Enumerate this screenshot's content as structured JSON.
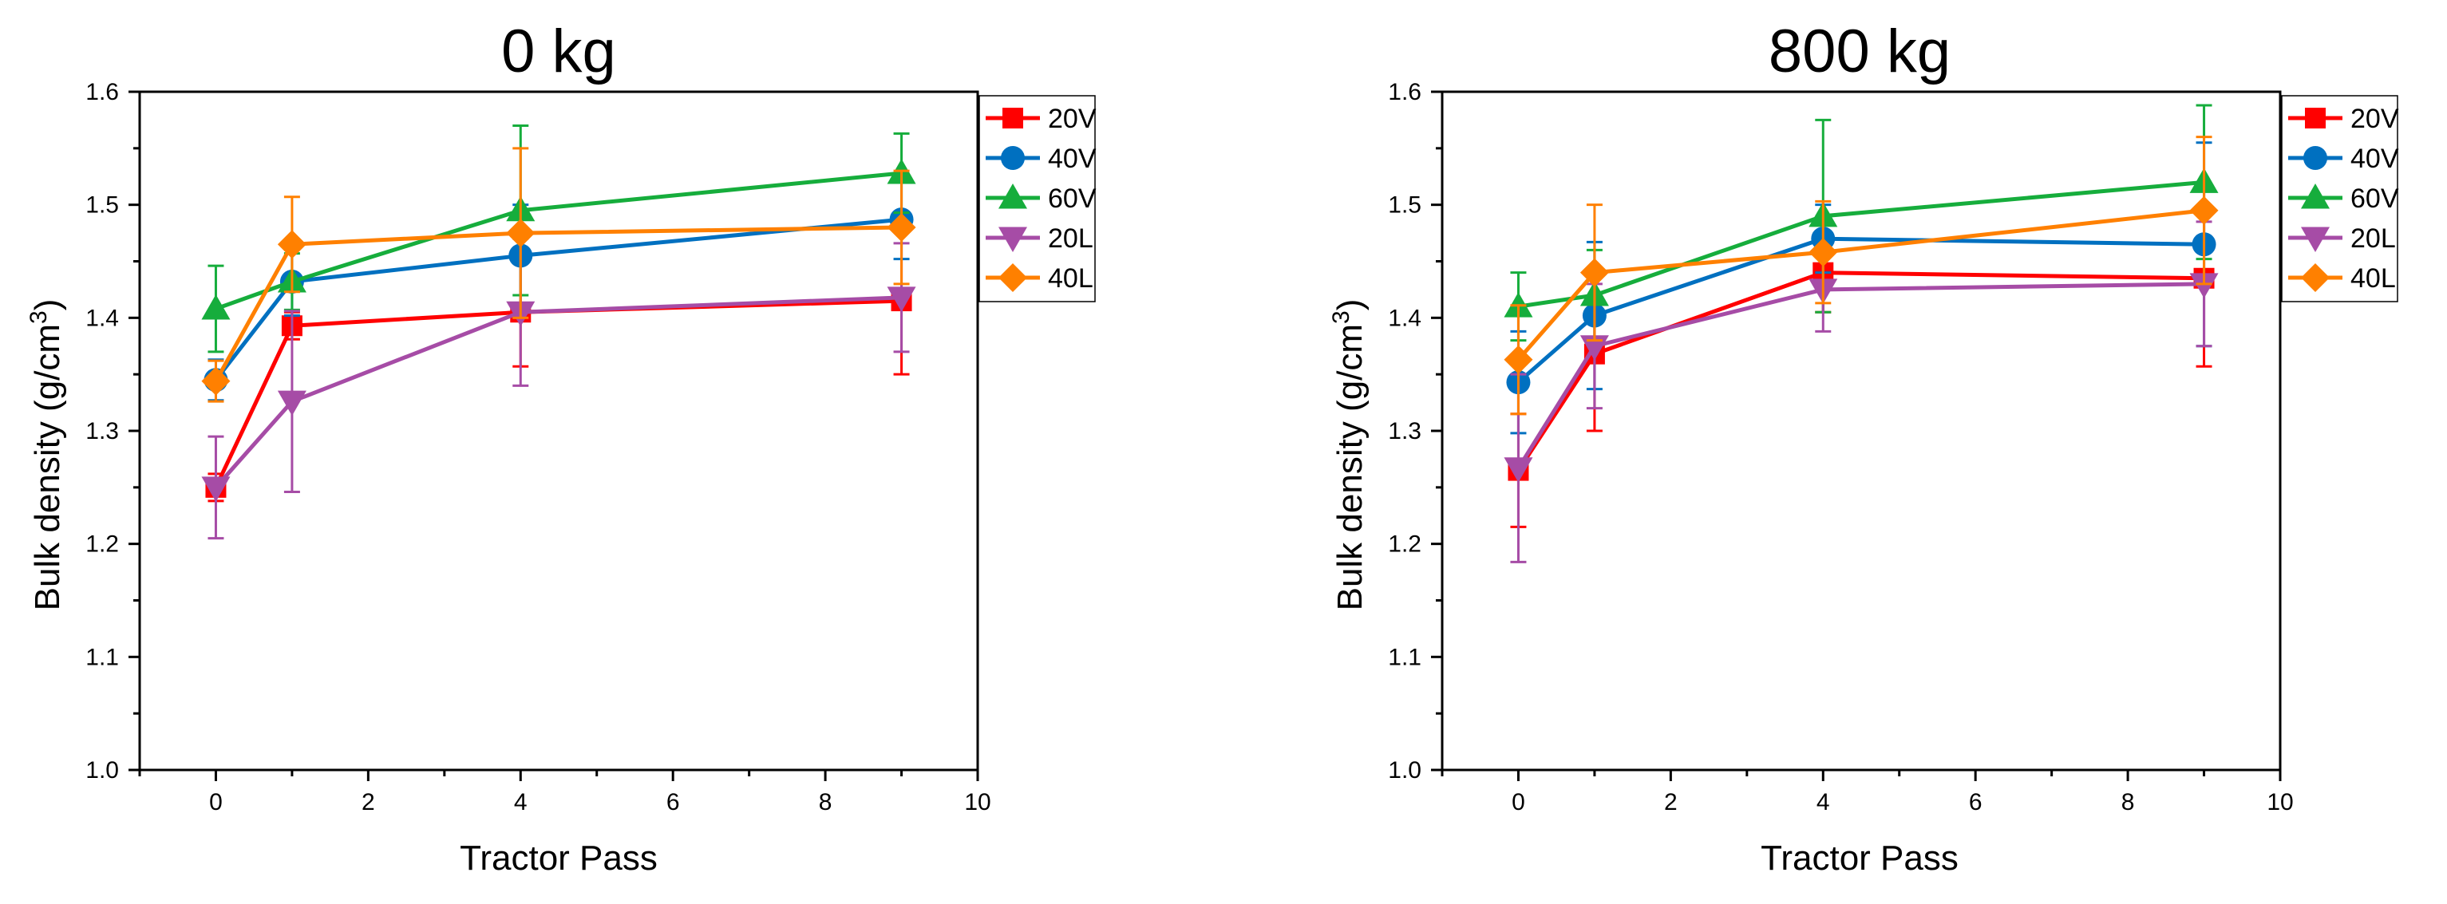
{
  "chart_data": [
    {
      "type": "line",
      "title": "0 kg",
      "xlabel": "Tractor Pass",
      "ylabel_main": "Bulk density (g/cm",
      "ylabel_sup": "3",
      "ylabel_close": ")",
      "xlim": [
        -1,
        10
      ],
      "ylim": [
        1.0,
        1.6
      ],
      "xticks": [
        0,
        2,
        4,
        6,
        8,
        10
      ],
      "xtick_labels": [
        "0",
        "2",
        "4",
        "6",
        "8",
        "10"
      ],
      "yticks": [
        1.0,
        1.1,
        1.2,
        1.3,
        1.4,
        1.5,
        1.6
      ],
      "ytick_labels": [
        "1.0",
        "1.1",
        "1.2",
        "1.3",
        "1.4",
        "1.5",
        "1.6"
      ],
      "legend_position": "outside-top-right",
      "x": [
        0,
        1,
        4,
        9
      ],
      "series": [
        {
          "name": "20V",
          "color": "#ff0000",
          "marker": "square",
          "values": [
            1.25,
            1.393,
            1.405,
            1.415
          ],
          "errors": [
            0.012,
            0.012,
            0.048,
            0.065
          ]
        },
        {
          "name": "40V",
          "color": "#0070c0",
          "marker": "circle",
          "values": [
            1.345,
            1.432,
            1.455,
            1.487
          ],
          "errors": [
            0.018,
            0.03,
            0.045,
            0.035
          ]
        },
        {
          "name": "60V",
          "color": "#16ad3c",
          "marker": "triangle-up",
          "values": [
            1.408,
            1.432,
            1.495,
            1.528
          ],
          "errors": [
            0.038,
            0.025,
            0.075,
            0.035
          ]
        },
        {
          "name": "20L",
          "color": "#a64ca6",
          "marker": "triangle-down",
          "values": [
            1.25,
            1.326,
            1.405,
            1.418
          ],
          "errors": [
            0.045,
            0.08,
            0.065,
            0.048
          ]
        },
        {
          "name": "40L",
          "color": "#ff8000",
          "marker": "diamond",
          "values": [
            1.344,
            1.465,
            1.475,
            1.48
          ],
          "errors": [
            0.018,
            0.042,
            0.075,
            0.05
          ]
        }
      ]
    },
    {
      "type": "line",
      "title": "800 kg",
      "xlabel": "Tractor Pass",
      "ylabel_main": "Bulk density (g/cm",
      "ylabel_sup": "3",
      "ylabel_close": ")",
      "xlim": [
        -1,
        10
      ],
      "ylim": [
        1.0,
        1.6
      ],
      "xticks": [
        0,
        2,
        4,
        6,
        8,
        10
      ],
      "xtick_labels": [
        "0",
        "2",
        "4",
        "6",
        "8",
        "10"
      ],
      "yticks": [
        1.0,
        1.1,
        1.2,
        1.3,
        1.4,
        1.5,
        1.6
      ],
      "ytick_labels": [
        "1.0",
        "1.1",
        "1.2",
        "1.3",
        "1.4",
        "1.5",
        "1.6"
      ],
      "legend_position": "outside-top-right",
      "x": [
        0,
        1,
        4,
        9
      ],
      "series": [
        {
          "name": "20V",
          "color": "#ff0000",
          "marker": "square",
          "values": [
            1.265,
            1.368,
            1.44,
            1.435
          ],
          "errors": [
            0.05,
            0.068,
            0.035,
            0.078
          ]
        },
        {
          "name": "40V",
          "color": "#0070c0",
          "marker": "circle",
          "values": [
            1.343,
            1.402,
            1.47,
            1.465
          ],
          "errors": [
            0.045,
            0.065,
            0.03,
            0.09
          ]
        },
        {
          "name": "60V",
          "color": "#16ad3c",
          "marker": "triangle-up",
          "values": [
            1.41,
            1.42,
            1.49,
            1.52
          ],
          "errors": [
            0.03,
            0.04,
            0.085,
            0.068
          ]
        },
        {
          "name": "20L",
          "color": "#a64ca6",
          "marker": "triangle-down",
          "values": [
            1.267,
            1.375,
            1.425,
            1.43
          ],
          "errors": [
            0.083,
            0.055,
            0.037,
            0.055
          ]
        },
        {
          "name": "40L",
          "color": "#ff8000",
          "marker": "diamond",
          "values": [
            1.363,
            1.44,
            1.458,
            1.495
          ],
          "errors": [
            0.048,
            0.06,
            0.045,
            0.065
          ]
        }
      ]
    }
  ]
}
